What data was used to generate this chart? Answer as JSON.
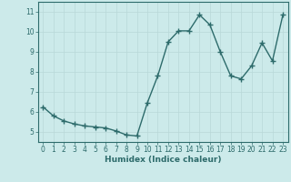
{
  "x": [
    0,
    1,
    2,
    3,
    4,
    5,
    6,
    7,
    8,
    9,
    10,
    11,
    12,
    13,
    14,
    15,
    16,
    17,
    18,
    19,
    20,
    21,
    22,
    23
  ],
  "y": [
    6.25,
    5.8,
    5.55,
    5.4,
    5.3,
    5.25,
    5.2,
    5.05,
    4.85,
    4.8,
    6.45,
    7.8,
    9.5,
    10.05,
    10.05,
    10.85,
    10.35,
    9.0,
    7.8,
    7.65,
    8.3,
    9.45,
    8.55,
    10.85
  ],
  "line_color": "#2d6b6b",
  "marker": "+",
  "markersize": 4,
  "linewidth": 1.0,
  "bg_color": "#cceaea",
  "grid_color": "#b8d8d8",
  "xlabel": "Humidex (Indice chaleur)",
  "xlim": [
    -0.5,
    23.5
  ],
  "ylim": [
    4.5,
    11.5
  ],
  "yticks": [
    5,
    6,
    7,
    8,
    9,
    10,
    11
  ],
  "xticks": [
    0,
    1,
    2,
    3,
    4,
    5,
    6,
    7,
    8,
    9,
    10,
    11,
    12,
    13,
    14,
    15,
    16,
    17,
    18,
    19,
    20,
    21,
    22,
    23
  ],
  "tick_color": "#2d6b6b",
  "label_fontsize": 6.5,
  "tick_fontsize": 5.5
}
